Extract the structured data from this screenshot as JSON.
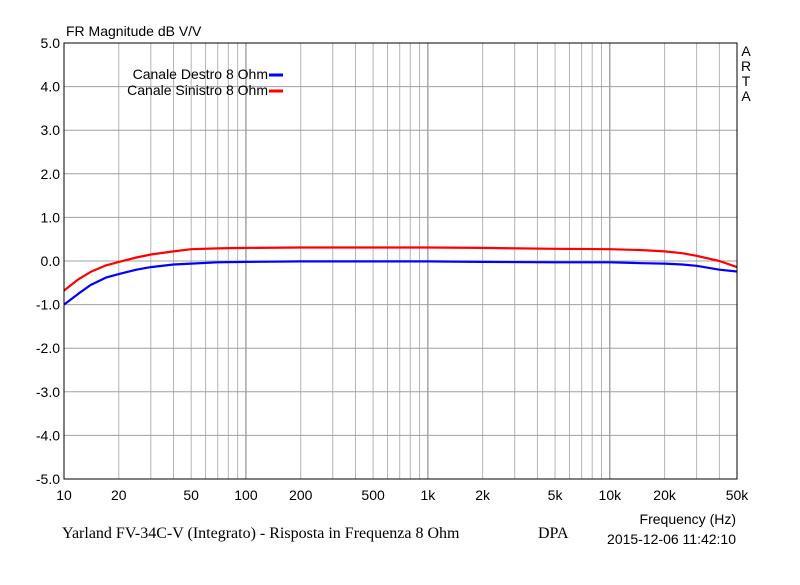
{
  "chart_data": {
    "type": "line",
    "title": "FR Magnitude dB V/V",
    "xlabel": "Frequency (Hz)",
    "ylabel": "",
    "x_scale": "log",
    "xlim": [
      10,
      50000
    ],
    "ylim": [
      -5.0,
      5.0
    ],
    "grid": true,
    "legend_position": "top-left",
    "side_label": "ARTA",
    "x_ticks": [
      {
        "v": 10,
        "label": "10"
      },
      {
        "v": 20,
        "label": "20"
      },
      {
        "v": 50,
        "label": "50"
      },
      {
        "v": 100,
        "label": "100"
      },
      {
        "v": 200,
        "label": "200"
      },
      {
        "v": 500,
        "label": "500"
      },
      {
        "v": 1000,
        "label": "1k"
      },
      {
        "v": 2000,
        "label": "2k"
      },
      {
        "v": 5000,
        "label": "5k"
      },
      {
        "v": 10000,
        "label": "10k"
      },
      {
        "v": 20000,
        "label": "20k"
      },
      {
        "v": 50000,
        "label": "50k"
      }
    ],
    "y_ticks": [
      {
        "v": 5,
        "label": "5.0"
      },
      {
        "v": 4,
        "label": "4.0"
      },
      {
        "v": 3,
        "label": "3.0"
      },
      {
        "v": 2,
        "label": "2.0"
      },
      {
        "v": 1,
        "label": "1.0"
      },
      {
        "v": 0,
        "label": "0.0"
      },
      {
        "v": -1,
        "label": "-1.0"
      },
      {
        "v": -2,
        "label": "-2.0"
      },
      {
        "v": -3,
        "label": "-3.0"
      },
      {
        "v": -4,
        "label": "-4.0"
      },
      {
        "v": -5,
        "label": "-5.0"
      }
    ],
    "series": [
      {
        "name": "Canale Destro 8 Ohm",
        "color": "#0000ff",
        "x": [
          10,
          12,
          14,
          17,
          20,
          25,
          30,
          40,
          50,
          70,
          100,
          200,
          500,
          1000,
          2000,
          5000,
          10000,
          15000,
          20000,
          25000,
          30000,
          40000,
          50000
        ],
        "y": [
          -1.0,
          -0.75,
          -0.55,
          -0.38,
          -0.3,
          -0.2,
          -0.14,
          -0.08,
          -0.06,
          -0.03,
          -0.02,
          -0.01,
          -0.01,
          -0.01,
          -0.02,
          -0.03,
          -0.03,
          -0.05,
          -0.06,
          -0.08,
          -0.11,
          -0.2,
          -0.24
        ]
      },
      {
        "name": "Canale Sinistro 8 Ohm",
        "color": "#ff0000",
        "x": [
          10,
          12,
          14,
          17,
          20,
          25,
          30,
          40,
          50,
          70,
          100,
          200,
          500,
          1000,
          2000,
          5000,
          10000,
          15000,
          20000,
          25000,
          30000,
          40000,
          50000
        ],
        "y": [
          -0.68,
          -0.42,
          -0.25,
          -0.1,
          -0.02,
          0.08,
          0.15,
          0.22,
          0.27,
          0.29,
          0.3,
          0.31,
          0.31,
          0.31,
          0.3,
          0.28,
          0.27,
          0.25,
          0.22,
          0.18,
          0.12,
          0.0,
          -0.14
        ]
      }
    ]
  },
  "footer": {
    "caption": "Yarland FV-34C-V (Integrato) - Risposta in Frequenza 8 Ohm",
    "tag": "DPA",
    "timestamp": "2015-12-06  11:42:10"
  }
}
